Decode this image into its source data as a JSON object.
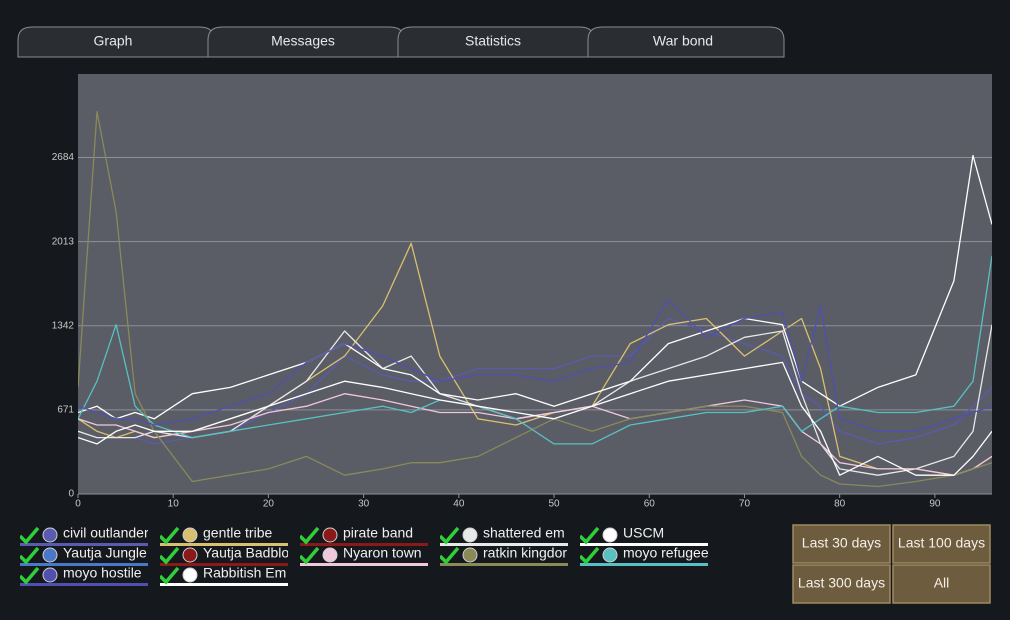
{
  "tabs": [
    "Graph",
    "Messages",
    "Statistics",
    "War bond"
  ],
  "buttons": [
    "Last 30 days",
    "Last 100 days",
    "Last 300 days",
    "All"
  ],
  "chart_data": {
    "type": "line",
    "x": [
      0,
      2,
      4,
      6,
      8,
      12,
      16,
      20,
      24,
      28,
      32,
      35,
      38,
      42,
      46,
      50,
      54,
      58,
      62,
      66,
      70,
      74,
      76,
      78,
      80,
      84,
      88,
      92,
      94,
      96
    ],
    "xlim": [
      0,
      96
    ],
    "xticks": [
      0,
      10,
      20,
      30,
      40,
      50,
      60,
      70,
      80,
      90
    ],
    "ylim": [
      0,
      3350
    ],
    "yticks": [
      0,
      671,
      1342,
      2013,
      2684
    ],
    "grid": true,
    "series": [
      {
        "name": "civil outlander",
        "color": "#5a5ab0",
        "values": [
          500,
          450,
          450,
          450,
          400,
          450,
          500,
          650,
          800,
          1100,
          950,
          900,
          900,
          1000,
          1000,
          1000,
          1100,
          1100,
          1400,
          1300,
          1200,
          1100,
          800,
          700,
          500,
          400,
          450,
          550,
          700,
          850
        ]
      },
      {
        "name": "gentle tribe",
        "color": "#d8c070",
        "values": [
          600,
          500,
          450,
          500,
          450,
          500,
          600,
          700,
          900,
          1100,
          1500,
          2000,
          1100,
          600,
          550,
          650,
          700,
          1200,
          1350,
          1400,
          1100,
          1300,
          1400,
          1000,
          300,
          200,
          200,
          150,
          200,
          300
        ]
      },
      {
        "name": "pirate band",
        "color": "#8a1a1a",
        "values": [
          null,
          null,
          null,
          null,
          null,
          null,
          null,
          null,
          null,
          null,
          null,
          null,
          null,
          null,
          null,
          null,
          null,
          null,
          null,
          null,
          null,
          null,
          null,
          null,
          null,
          null,
          null,
          null,
          null,
          null
        ]
      },
      {
        "name": "shattered em",
        "color": "#e8e8e8",
        "values": [
          500,
          450,
          450,
          450,
          500,
          450,
          500,
          700,
          900,
          1300,
          1000,
          1100,
          800,
          700,
          600,
          650,
          700,
          900,
          1000,
          1100,
          1250,
          1300,
          800,
          400,
          200,
          150,
          200,
          300,
          500,
          1350
        ]
      },
      {
        "name": "USCM",
        "color": "#ffffff",
        "values": [
          650,
          700,
          600,
          650,
          600,
          800,
          850,
          950,
          1050,
          1200,
          1000,
          950,
          800,
          750,
          800,
          700,
          800,
          900,
          1200,
          1300,
          1400,
          1350,
          900,
          800,
          700,
          850,
          950,
          1700,
          2700,
          2150
        ]
      },
      {
        "name": "Yautja Jungle",
        "color": "#4a78c8",
        "values": [
          null,
          null,
          null,
          null,
          null,
          null,
          null,
          null,
          null,
          null,
          null,
          null,
          null,
          null,
          null,
          null,
          null,
          null,
          null,
          null,
          null,
          null,
          null,
          null,
          null,
          null,
          null,
          null,
          null,
          null
        ]
      },
      {
        "name": "Yautja Badblo",
        "color": "#8a1a1a",
        "values": [
          null,
          null,
          null,
          null,
          null,
          null,
          null,
          null,
          null,
          null,
          null,
          null,
          null,
          null,
          null,
          null,
          null,
          null,
          null,
          null,
          null,
          null,
          null,
          null,
          null,
          null,
          null,
          null,
          null,
          null
        ]
      },
      {
        "name": "Nyaron town",
        "color": "#f0c8dc",
        "values": [
          600,
          550,
          550,
          500,
          450,
          500,
          550,
          650,
          700,
          800,
          750,
          700,
          650,
          650,
          600,
          650,
          700,
          600,
          650,
          700,
          750,
          700,
          500,
          400,
          250,
          200,
          200,
          150,
          200,
          300
        ]
      },
      {
        "name": "ratkin kingdor",
        "color": "#8a8a58",
        "values": [
          850,
          3050,
          2250,
          800,
          500,
          100,
          150,
          200,
          300,
          150,
          200,
          250,
          250,
          300,
          450,
          600,
          500,
          600,
          650,
          700,
          700,
          650,
          300,
          150,
          80,
          60,
          100,
          150,
          200,
          250
        ]
      },
      {
        "name": "moyo refugee",
        "color": "#58c0c0",
        "values": [
          600,
          900,
          1350,
          700,
          550,
          450,
          500,
          550,
          600,
          650,
          700,
          650,
          750,
          700,
          600,
          400,
          400,
          550,
          600,
          650,
          650,
          700,
          500,
          600,
          700,
          650,
          650,
          700,
          900,
          1900
        ]
      },
      {
        "name": "moyo hostile",
        "color": "#5050b0",
        "values": [
          700,
          650,
          600,
          600,
          550,
          600,
          700,
          800,
          1050,
          1200,
          1100,
          1000,
          900,
          950,
          950,
          900,
          1000,
          1050,
          1550,
          1250,
          1400,
          1450,
          900,
          1500,
          600,
          500,
          500,
          600,
          650,
          700
        ]
      },
      {
        "name": "Rabbitish Em",
        "color": "#ffffff",
        "values": [
          450,
          400,
          500,
          550,
          500,
          500,
          600,
          700,
          800,
          900,
          850,
          800,
          750,
          700,
          650,
          600,
          700,
          800,
          900,
          950,
          1000,
          1050,
          700,
          500,
          150,
          300,
          150,
          150,
          300,
          500
        ]
      }
    ]
  }
}
